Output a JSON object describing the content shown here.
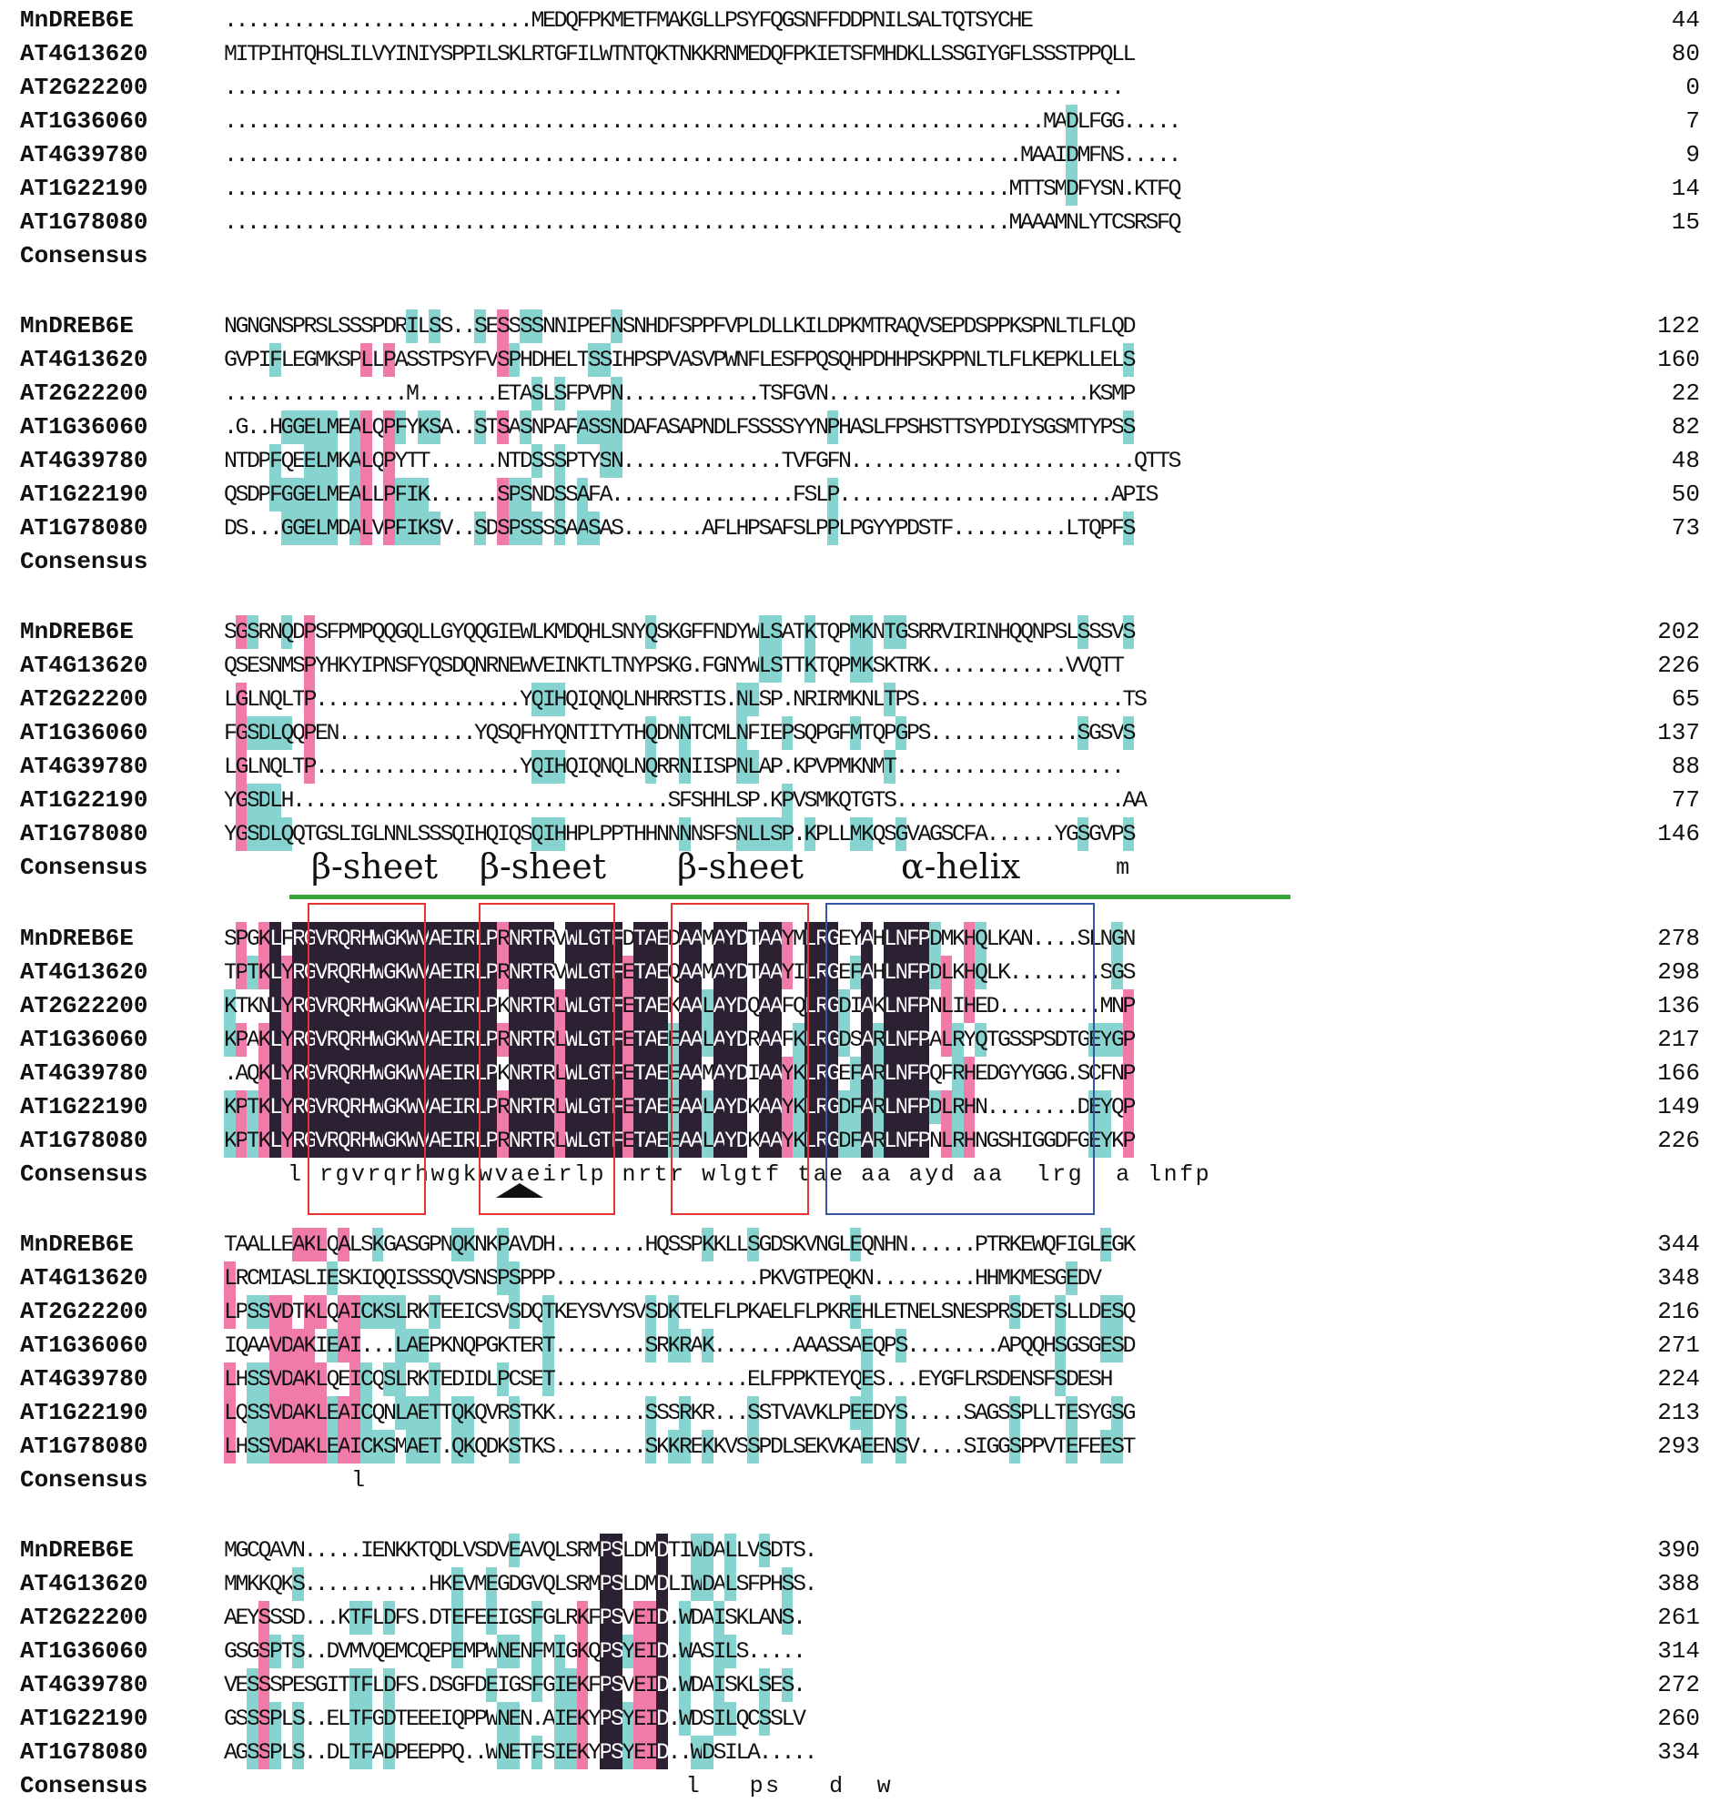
{
  "colors": {
    "identical": "#2b2133",
    "high_similarity": "#f07aa8",
    "low_similarity": "#86d3cf",
    "sheet_box": "#e53333",
    "helix_box": "#3355aa",
    "domain_line": "#3aa33a"
  },
  "annotations": {
    "sheet1": "β-sheet",
    "sheet2": "β-sheet",
    "sheet3": "β-sheet",
    "helix": "α-helix"
  },
  "blocks": [
    {
      "rows": [
        {
          "name": "MnDREB6E",
          "seq": "...........................MEDQFPKMETFMAKGLLPSYFQGSNFFDDPNILSALTQTSYCHE",
          "num": "44"
        },
        {
          "name": "AT4G13620",
          "seq": "MITPIHTQHSLILVYINIYSPPILSKLRTGFILWTNTQKTNKKRNMEDQFPKIETSFMHDKLLSSGIYGFLSSSTPPQLL",
          "num": "80"
        },
        {
          "name": "AT2G22200",
          "seq": "...............................................................................",
          "num": "0"
        },
        {
          "name": "AT1G36060",
          "seq": "........................................................................MADLFGG.....",
          "num": "7"
        },
        {
          "name": "AT4G39780",
          "seq": "......................................................................MAAIDMFNS.....",
          "num": "9"
        },
        {
          "name": "AT1G22190",
          "seq": ".....................................................................MTTSMDFYSN.KTFQ",
          "num": "14"
        },
        {
          "name": "AT1G78080",
          "seq": ".....................................................................MAAAMNLYTCSRSFQ",
          "num": "15"
        },
        {
          "name": "Consensus",
          "seq": "",
          "num": ""
        }
      ]
    },
    {
      "rows": [
        {
          "name": "MnDREB6E",
          "seq": "NGNGNSPRSLSSSPDRILSS..SESSSSNNIPEFNSNHDFSPPFVPLDLLKILDPKMTRAQVSEPDSPPKSPNLTLFLQD",
          "num": "122"
        },
        {
          "name": "AT4G13620",
          "seq": "GVPIFLEGMKSPLLPASSTPSYFVSPHDHELTSSIHPSPVASVPWNFLESFPQSQHPDHHPSKPPNLTLFLKEPKLLELS",
          "num": "160"
        },
        {
          "name": "AT2G22200",
          "seq": "................M.......ETASLSFPVPN............TSFGVN.......................KSMP",
          "num": "22"
        },
        {
          "name": "AT1G36060",
          "seq": ".G..HGGELMEALQPFYKSA..STSASNPAFASSNDAFASAPNDLFSSSSYYNPHASLFPSHSTTSYPDIYSGSMTYPSS",
          "num": "82"
        },
        {
          "name": "AT4G39780",
          "seq": "NTDPFQEELMKALQPYTT......NTDSSSPTYSN..............TVFGFN.........................QTTS",
          "num": "48"
        },
        {
          "name": "AT1G22190",
          "seq": "QSDPFGGELMEALLPFIK......SPSNDSSAFA................FSLP........................APIS",
          "num": "50"
        },
        {
          "name": "AT1G78080",
          "seq": "DS...GGELMDALVPFIKSV..SDSPSSSSAASAS.......AFLHPSAFSLPPLPGYYPDSTF..........LTQPFS",
          "num": "73"
        },
        {
          "name": "Consensus",
          "seq": "",
          "num": ""
        }
      ]
    },
    {
      "rows": [
        {
          "name": "MnDREB6E",
          "seq": "SGSRNQDPSFPMPQQGQLLGYQQGIEWLKMDQHLSNYQSKGFFNDYWLSATKTQPMKNTGSRRVIRINHQQNPSLSSSVS",
          "num": "202"
        },
        {
          "name": "AT4G13620",
          "seq": "QSESNMSPYHKYIPNSFYQSDQNRNEWVEINKTLTNYPSKG.FGNYWLSTTKTQPMKSKTRK............VVQTT",
          "num": "226"
        },
        {
          "name": "AT2G22200",
          "seq": "LGLNQLTP..................YQIHQIQNQLNHRRSTIS.NLSP.NRIRMKNLTPS..................TS",
          "num": "65"
        },
        {
          "name": "AT1G36060",
          "seq": "FGSDLQQPEN............YQSQFHYQNTITYTHQDNNTCMLNFIEPSQPGFMTQPGPS.............SGSVS",
          "num": "137"
        },
        {
          "name": "AT4G39780",
          "seq": "LGLNQLTP..................YQIHQIQNQLNQRRNIISPNLAP.KPVPMKNMT....................",
          "num": "88"
        },
        {
          "name": "AT1G22190",
          "seq": "YGSDLH.................................SFSHHLSP.KPVSMKQTGTS....................AA",
          "num": "77"
        },
        {
          "name": "AT1G78080",
          "seq": "YGSDLQQTGSLIGLNNLSSSQIHQIQSQIHHPLPPTHHNNNNSFSNLLSP.KPLLMKQSGVAGSCFA......YGSGVPS",
          "num": "146"
        },
        {
          "name": "Consensus",
          "seq": "                                                        m                       ",
          "num": ""
        }
      ]
    },
    {
      "rows": [
        {
          "name": "MnDREB6E",
          "seq": "SPGKLFRGVRQRHWGKWVAEIRLPRNRTRVWLGTFDTAEDAAMAYDTAAYMLRGEYAHLNFPDMKHQLKAN....SLNGN",
          "num": "278"
        },
        {
          "name": "AT4G13620",
          "seq": "TPTKLYRGVRQRHWGKWVAEIRLPRNRTRVWLGTFETAEQAAMAYDTAAYILRGEFAHLNFPDLKHQLK........SGS",
          "num": "298"
        },
        {
          "name": "AT2G22200",
          "seq": "KTKNLYRGVRQRHWGKWVAEIRLPKNRTRLWLGTFETAEKAALAYDQAAFQLRGDIAKLNFPNLIHED.........MNP",
          "num": "136"
        },
        {
          "name": "AT1G36060",
          "seq": "KPAKLYRGVRQRHWGKWVAEIRLPRNRTRLWLGTFETAEEAALAYDRAAFKLRGDSARLNFPALRYQTGSSPSDTGEYGP",
          "num": "217"
        },
        {
          "name": "AT4G39780",
          "seq": ".AQKLYRGVRQRHWGKWVAEIRLPKNRTRLWLGTFETAEEAAMAYDIAAYKLRGEFARLNFPQFRHEDGYYGGG.SCFNP",
          "num": "166"
        },
        {
          "name": "AT1G22190",
          "seq": "KPTKLYRGVRQRHWGKWVAEIRLPRNRTRLWLGTFETAEEAALAYDKAAYKLRGDFARLNFPDLRHN........DEYQP",
          "num": "149"
        },
        {
          "name": "AT1G78080",
          "seq": "KPTKLYRGVRQRHWGKWVAEIRLPRNRTRLWLGTFETAEEAALAYDKAAYKLRGDFARLNFPNLRHNGSHIGGDFGEYKP",
          "num": "226"
        },
        {
          "name": "Consensus",
          "seq": "    l rgvrqrhwgkwvaeirlp nrtr wlgtf tae aa ayd aa  lrg  a lnfp",
          "num": ""
        }
      ]
    },
    {
      "rows": [
        {
          "name": "MnDREB6E",
          "seq": "TAALLEAKLQALSKGASGPNQKNKPAVDH........HQSSPKKLLSGDSKVNGLEQNHN......PTRKEWQFIGLEGK",
          "num": "344"
        },
        {
          "name": "AT4G13620",
          "seq": "LRCMIASLIESKIQQISSSQVSNSPSPPP..................PKVGTPEQKN.........HHMKMESGEDV",
          "num": "348"
        },
        {
          "name": "AT2G22200",
          "seq": "LPSSVDTKLQAICKSLRKTEEICSVSDQTKEYSVYSVSDKTELFLPKAELFLPKREHLETNELSNESPRSDETSLLDESQ",
          "num": "216"
        },
        {
          "name": "AT1G36060",
          "seq": "IQAAVDAKIEAI...LAEPKNQPGKTERT........SRKRAK.......AAASSAEQPS........APQQHSGSGESD",
          "num": "271"
        },
        {
          "name": "AT4G39780",
          "seq": "LHSSVDAKLQEICQSLRKTEDIDLPCSET.................ELFPPKTEYQES...EYGFLRSDENSFSDESH",
          "num": "224"
        },
        {
          "name": "AT1G22190",
          "seq": "LQSSVDAKLEAICQNLAETTQKQVRSTKK........SSSRKR...SSTVAVKLPEEDYS.....SAGSSPLLTESYGSG",
          "num": "213"
        },
        {
          "name": "AT1G78080",
          "seq": "LHSSVDAKLEAICKSMAET.QKQDKSTKS........SKKREKKVSSPDLSEKVKAEENSV....SIGGSPPVTEFEEST",
          "num": "293"
        },
        {
          "name": "Consensus",
          "seq": "        l",
          "num": ""
        }
      ]
    },
    {
      "rows": [
        {
          "name": "MnDREB6E",
          "seq": "MGCQAVN.....IENKKTQDLVSDVEAVQLSRMPSLDMDTIWDALLVSDTS.",
          "num": "390"
        },
        {
          "name": "AT4G13620",
          "seq": "MMKKQKS...........HKEVMEGDGVQLSRMPSLDMDLIWDALSFPHSS.",
          "num": "388"
        },
        {
          "name": "AT2G22200",
          "seq": "AEYSSSD...KTFLDFS.DTEFEEIGSFGLRKFPSVEID.WDAISKLANS.",
          "num": "261"
        },
        {
          "name": "AT1G36060",
          "seq": "GSGSPTS..DVMVQEMCQEPEMPWNENFMIGKQPSYEID.WASILS.....",
          "num": "314"
        },
        {
          "name": "AT4G39780",
          "seq": "VESSSPESGITTFLDFS.DSGFDEIGSFGIEKFPSVEID.WDAISKLSES.",
          "num": "272"
        },
        {
          "name": "AT1G22190",
          "seq": "GSSSPLS..ELTFGDTEEEIQPPWNEN.AIEKYPSYEID.WDSILQCSSLV",
          "num": "260"
        },
        {
          "name": "AT1G78080",
          "seq": "AGSSPLS..DLTFADPEEPPQ..WNETFSIEKYPSYEID..WDSILA.....",
          "num": "334"
        },
        {
          "name": "Consensus",
          "seq": "                             l   ps   d  w",
          "num": ""
        }
      ]
    }
  ]
}
